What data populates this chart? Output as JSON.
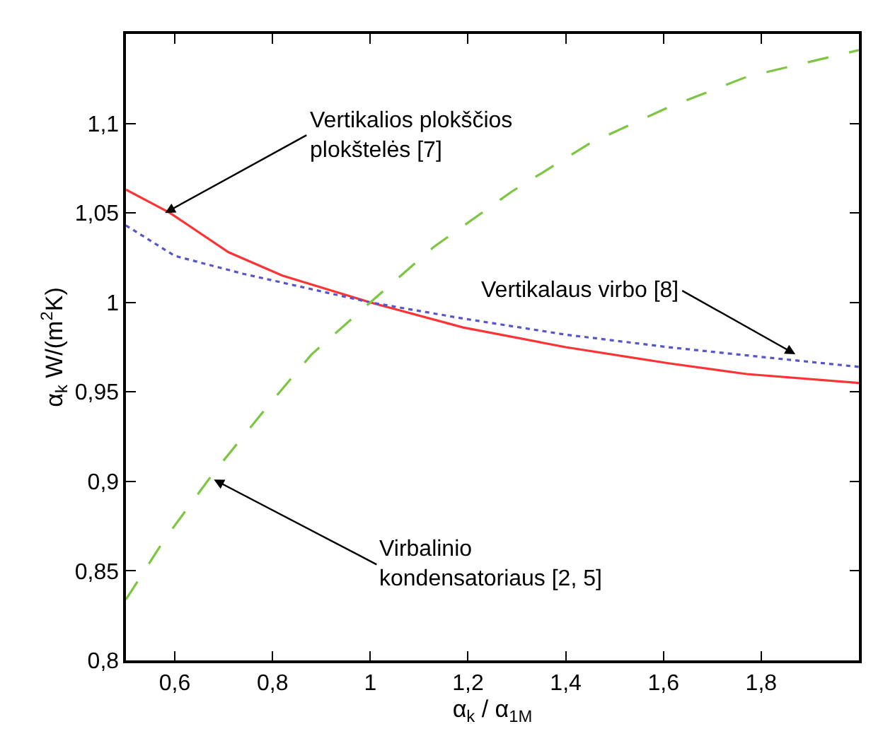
{
  "chart_data": {
    "type": "line",
    "xlabel": "α$_{k}$ / α$_{1M}$",
    "ylabel": "α$_{k}$ W/(m$^{2}$K)",
    "xlim": [
      0.5,
      2.0
    ],
    "ylim": [
      0.8,
      1.15
    ],
    "xticks": [
      {
        "value": 0.6,
        "label": "0,6"
      },
      {
        "value": 0.8,
        "label": "0,8"
      },
      1,
      {
        "value": 1.2,
        "label": "1,2"
      },
      {
        "value": 1.4,
        "label": "1,4"
      },
      {
        "value": 1.6,
        "label": "1,6"
      },
      {
        "value": 1.8,
        "label": "1,8"
      }
    ],
    "yticks": [
      {
        "value": 0.8,
        "label": "0,8"
      },
      {
        "value": 0.85,
        "label": "0,85"
      },
      {
        "value": 0.9,
        "label": "0,9"
      },
      {
        "value": 0.95,
        "label": "0,95"
      },
      1,
      {
        "value": 1.05,
        "label": "1,05"
      },
      {
        "value": 1.1,
        "label": "1,1"
      }
    ],
    "marker": "none",
    "series": [
      {
        "color": "#ff3333",
        "line_style": "solid",
        "x": [
          0.5,
          0.59,
          0.71,
          0.82,
          1.0,
          1.19,
          1.4,
          1.61,
          1.77,
          2.0
        ],
        "values": [
          1.063,
          1.05,
          1.028,
          1.015,
          1.0,
          0.986,
          0.975,
          0.966,
          0.96,
          0.955
        ]
      },
      {
        "color": "#5555cc",
        "line_style": "dotted",
        "x": [
          0.5,
          0.6,
          0.74,
          0.87,
          1.0,
          1.19,
          1.4,
          1.61,
          1.82,
          2.0
        ],
        "values": [
          1.043,
          1.026,
          1.016,
          1.008,
          1.0,
          0.991,
          0.982,
          0.975,
          0.969,
          0.964
        ]
      },
      {
        "color": "#7dc642",
        "line_style": "dashed",
        "x": [
          0.5,
          0.58,
          0.68,
          0.79,
          0.88,
          1.0,
          1.13,
          1.29,
          1.45,
          1.61,
          1.77,
          2.0
        ],
        "values": [
          0.834,
          0.868,
          0.905,
          0.942,
          0.971,
          1.0,
          1.031,
          1.062,
          1.089,
          1.109,
          1.126,
          1.141
        ]
      }
    ],
    "annotations": [
      {
        "text": "Vertikalios plokščios\nplokštelės [7]",
        "x": 0.58,
        "y": 1.05
      },
      {
        "text": "Vertikalaus virbo [8]",
        "x": 1.87,
        "y": 0.971
      },
      {
        "text": "Virbalinio\nkondensatoriaus [2, 5]",
        "x": 0.68,
        "y": 0.901
      }
    ]
  }
}
